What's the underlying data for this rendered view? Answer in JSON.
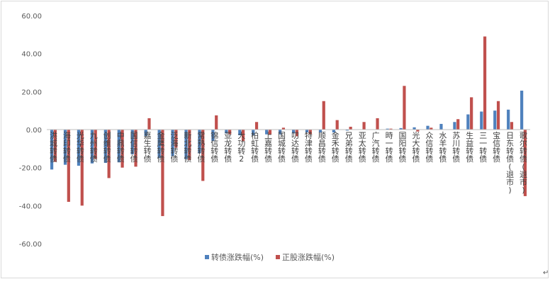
{
  "chart_data": {
    "type": "bar",
    "title": "",
    "xlabel": "",
    "ylabel": "",
    "ylim": [
      -60,
      60
    ],
    "yticks": [
      "60.00",
      "40.00",
      "20.00",
      "0.00",
      "-20.00",
      "-40.00",
      "-60.00"
    ],
    "grid": false,
    "legend_position": "bottom",
    "categories": [
      "洪城转债",
      "海印转债",
      "光华转债",
      "九州转债",
      "创维转债",
      "中鼎转债",
      "国信转债",
      "嘉生转债",
      "金鹰转债",
      "泛海转债",
      "新北转债",
      "常熟转债",
      "锦信转债",
      "亚龙转债",
      "大功转2",
      "柏虹转债",
      "上嘉转债",
      "国城转债",
      "叨达转债",
      "特津转债",
      "顺昌转债",
      "金禾转债",
      "兄弟转债",
      "亚太转债",
      "广汽转债",
      "時一转债",
      "国阳转债",
      "光大转债",
      "众信转债",
      "水羊转债",
      "苏川转债",
      "生益转债",
      "三一转债",
      "宝信转债",
      "日东转债(退市)",
      "歌尔转债(退市)"
    ],
    "series": [
      {
        "name": "转债涨跌幅(%)",
        "color": "#4f81bd",
        "values": [
          -21.0,
          -18.5,
          -19.0,
          -17.8,
          -17.5,
          -17.2,
          -13.0,
          -3.5,
          -15.0,
          -14.0,
          -15.5,
          -12.5,
          -6.0,
          -2.0,
          -3.0,
          -3.0,
          -2.5,
          -2.5,
          -2.0,
          -1.5,
          -1.5,
          -1.5,
          -0.5,
          0.0,
          0.0,
          0.5,
          0.8,
          1.2,
          2.0,
          3.0,
          4.0,
          8.0,
          9.5,
          10.0,
          10.5,
          20.5
        ]
      },
      {
        "name": "正股涨跌幅(%)",
        "color": "#c0504d",
        "values": [
          -17.0,
          -38.0,
          -40.0,
          -15.5,
          -25.5,
          -20.0,
          -19.5,
          6.0,
          -45.5,
          -9.5,
          -16.0,
          -27.0,
          7.5,
          -2.5,
          -6.0,
          4.0,
          -2.5,
          1.0,
          -3.5,
          -2.5,
          15.0,
          5.0,
          1.5,
          4.0,
          6.0,
          0.5,
          23.0,
          -1.0,
          1.0,
          0.0,
          5.5,
          17.0,
          49.0,
          15.0,
          4.0,
          -35.0
        ]
      }
    ]
  },
  "corner_mark": "↵"
}
